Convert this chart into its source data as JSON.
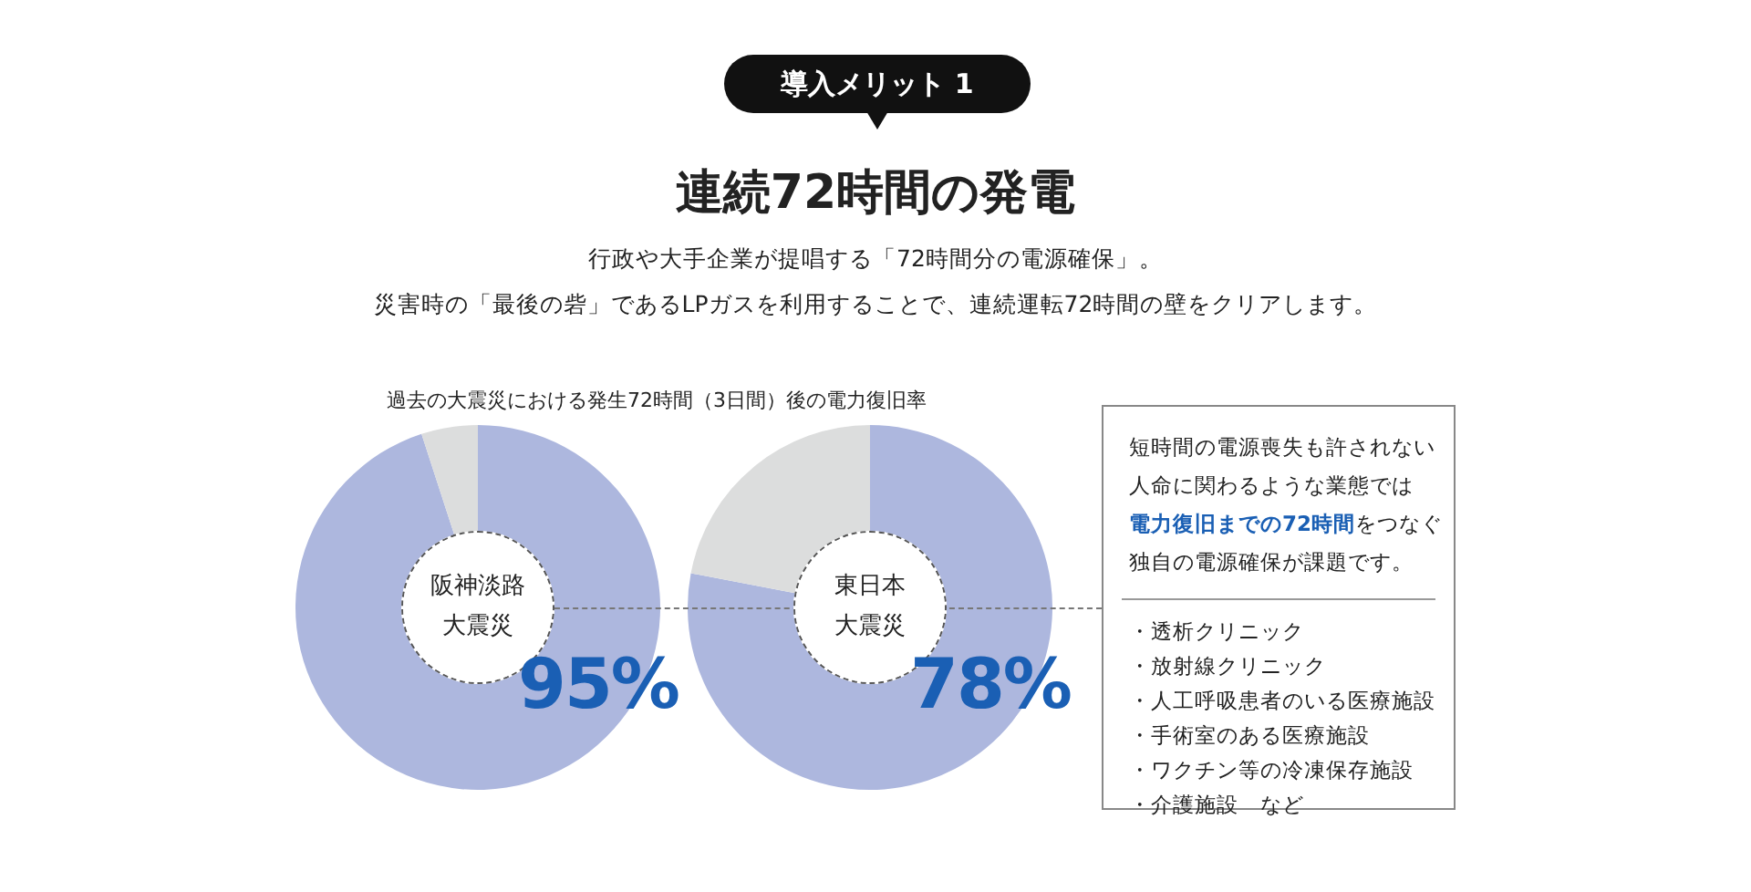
{
  "chart_data": [
    {
      "type": "donut",
      "title": "過去の大震災における発生72時間（3日間）後の電力復旧率",
      "xlabel": "阪神淡路大震災",
      "annotations": [
        "導入メリット 1",
        "連続72時間の発電",
        "行政や大手企業が提唱する「72時間分の電源確保」。",
        "災害時の「最後の砦」であるLPガスを利用することで、連続運転72時間の壁をクリアします。"
      ],
      "categories": [
        null,
        null
      ],
      "values": [
        95,
        5
      ],
      "colors": [
        "#adb7de",
        "#dcdddd"
      ],
      "value_labels": [
        "95%",
        null
      ]
    },
    {
      "type": "donut",
      "xlabel": "東日本大震災",
      "categories": [
        null,
        null
      ],
      "values": [
        78,
        22
      ],
      "colors": [
        "#adb7de",
        "#dcdddd"
      ],
      "value_labels": [
        "78%",
        null
      ]
    },
    {
      "type": "other",
      "annotations": [
        "短時間の電源喪失も許されない",
        "人命に関わるような業態では",
        "電力復旧までの72時間",
        "をつなぐ",
        "独自の電源確保が課題です。",
        "・透析クリニック",
        "・放射線クリニック",
        "・人工呼吸患者のいる医療施設",
        "・手術室のある医療施設",
        "・ワクチン等の冷凍保存施設",
        "・介護施設　など"
      ]
    }
  ]
}
